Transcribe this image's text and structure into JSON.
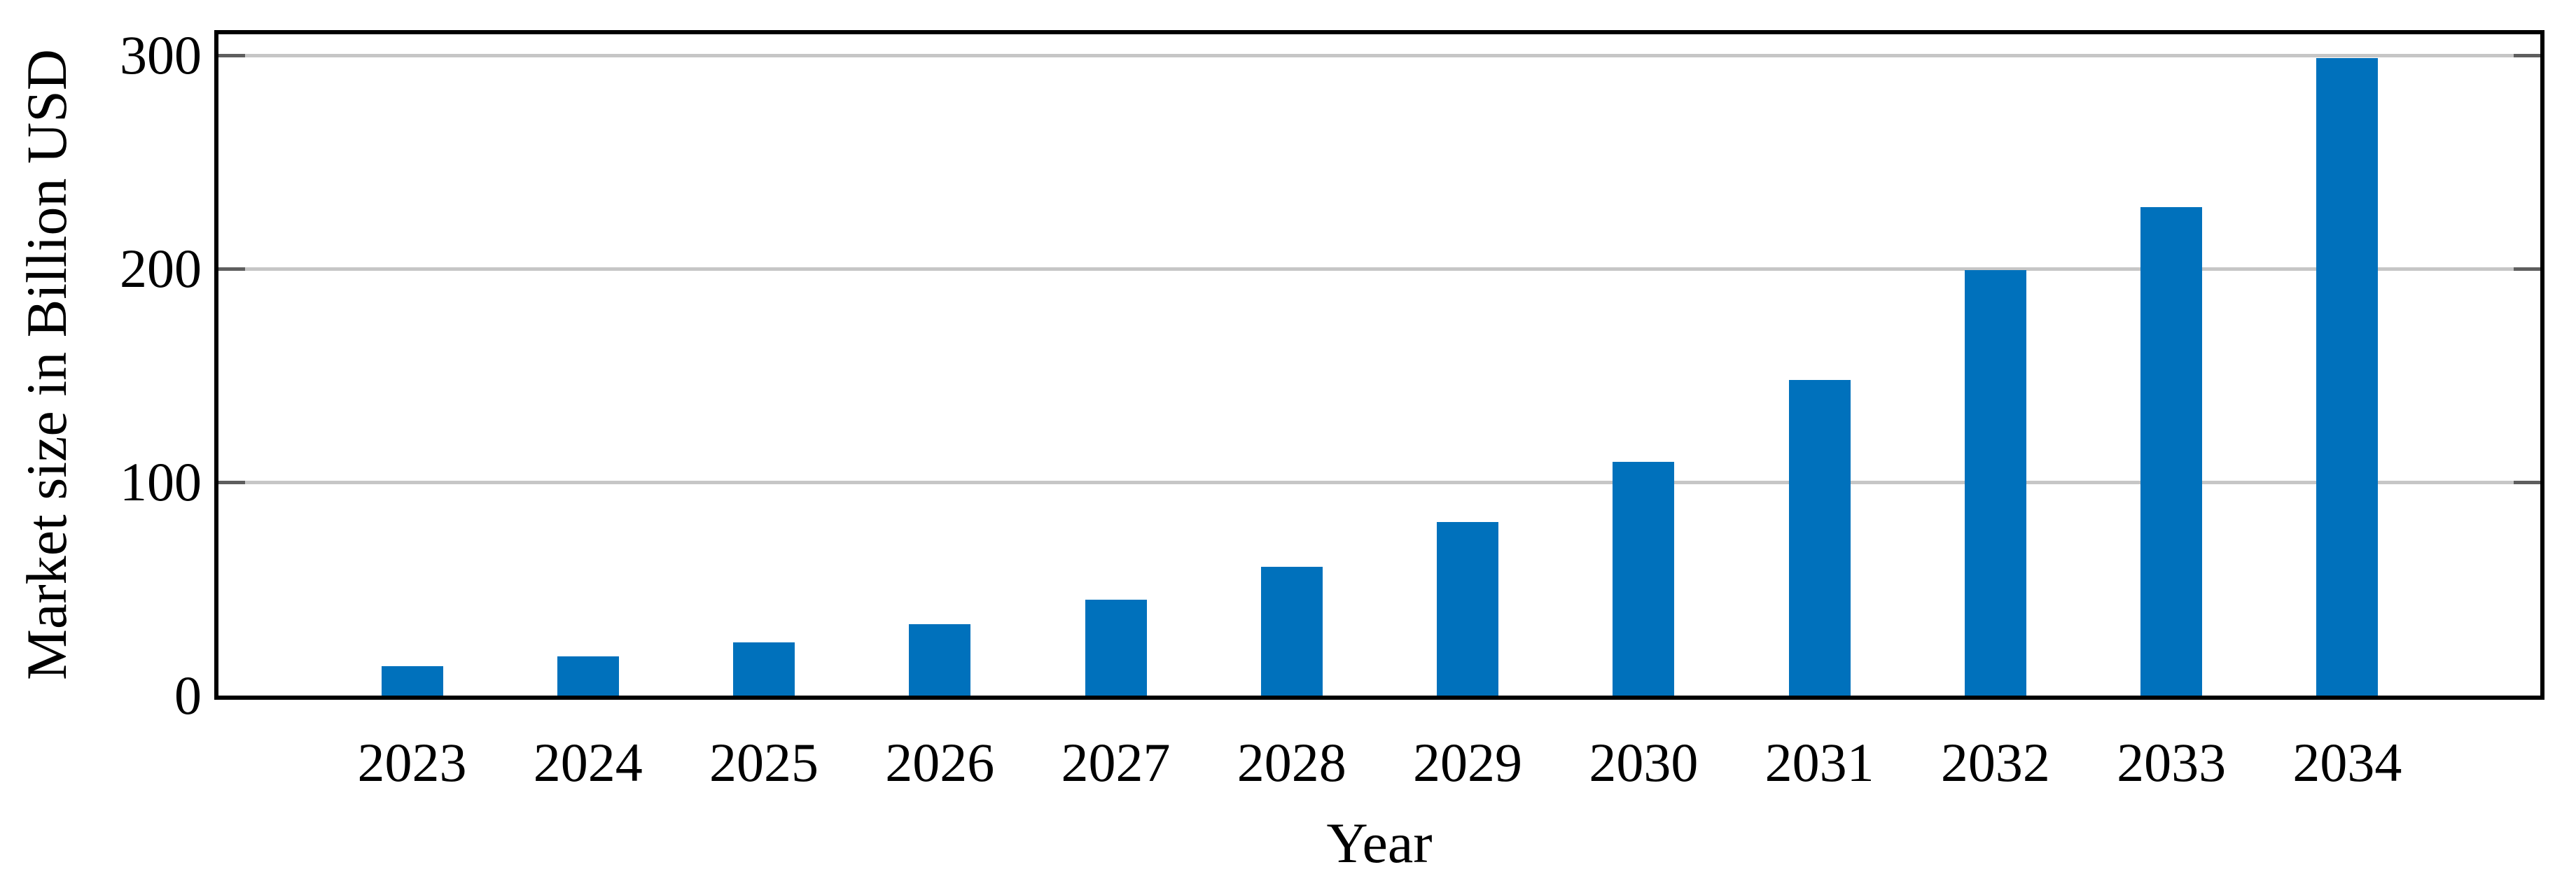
{
  "chart_data": {
    "type": "bar",
    "title": "",
    "xlabel": "Year",
    "ylabel": "Market size in Billion USD",
    "categories": [
      "2023",
      "2024",
      "2025",
      "2026",
      "2027",
      "2028",
      "2029",
      "2030",
      "2031",
      "2032",
      "2033",
      "2034"
    ],
    "values": [
      13.8,
      18.5,
      24.9,
      33.5,
      44.9,
      60.3,
      81.3,
      109.6,
      148.0,
      199.3,
      229.1,
      298.9
    ],
    "yticks": [
      0,
      100,
      200,
      300
    ],
    "ylim": [
      0,
      310
    ],
    "grid": "horizontal-major",
    "legend_position": "none",
    "bar_color": "#0071bc",
    "gridline_color": "#c6c6c6",
    "tick_color": "#5e5e5e",
    "frame_color": "#000000"
  }
}
